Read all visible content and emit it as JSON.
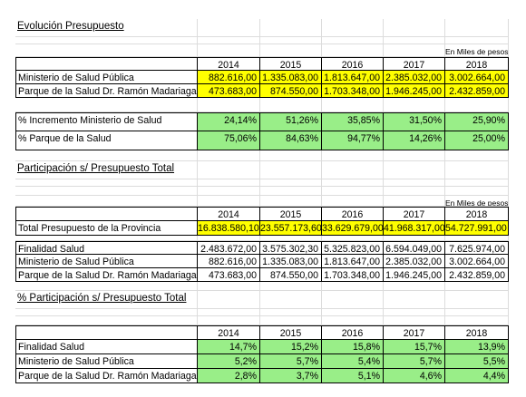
{
  "years": [
    "2014",
    "2015",
    "2016",
    "2017",
    "2018"
  ],
  "unit_label": "En Miles de pesos",
  "section1": {
    "title": "Evolución Presupuesto",
    "rows": [
      {
        "label": "Ministerio de Salud Pública",
        "values": [
          "882.616,00",
          "1.335.083,00",
          "1.813.647,00",
          "2.385.032,00",
          "3.002.664,00"
        ]
      },
      {
        "label": "Parque de la Salud Dr. Ramón Madariaga",
        "values": [
          "473.683,00",
          "874.550,00",
          "1.703.348,00",
          "1.946.245,00",
          "2.432.859,00"
        ]
      }
    ],
    "pct_rows": [
      {
        "label": "% Incremento Ministerio de Salud",
        "values": [
          "24,14%",
          "51,26%",
          "35,85%",
          "31,50%",
          "25,90%"
        ]
      },
      {
        "label": "% Parque de la Salud",
        "values": [
          "75,06%",
          "84,63%",
          "94,77%",
          "14,26%",
          "25,00%"
        ]
      }
    ]
  },
  "section2": {
    "title": "Participación s/ Presupuesto Total",
    "total_row": {
      "label": "Total Presupuesto de la Provincia",
      "values": [
        "16.838.580,10",
        "23.557.173,60",
        "33.629.679,00",
        "41.968.317,00",
        "54.727.991,00"
      ]
    },
    "rows": [
      {
        "label": "Finalidad Salud",
        "values": [
          "2.483.672,00",
          "3.575.302,30",
          "5.325.823,00",
          "6.594.049,00",
          "7.625.974,00"
        ]
      },
      {
        "label": "Ministerio de Salud Pública",
        "values": [
          "882.616,00",
          "1.335.083,00",
          "1.813.647,00",
          "2.385.032,00",
          "3.002.664,00"
        ]
      },
      {
        "label": "Parque de la Salud Dr. Ramón Madariaga",
        "values": [
          "473.683,00",
          "874.550,00",
          "1.703.348,00",
          "1.946.245,00",
          "2.432.859,00"
        ]
      }
    ]
  },
  "section3": {
    "title": "% Participación s/ Presupuesto Total",
    "rows": [
      {
        "label": "Finalidad Salud",
        "values": [
          "14,7%",
          "15,2%",
          "15,8%",
          "15,7%",
          "13,9%"
        ]
      },
      {
        "label": "Ministerio de Salud Pública",
        "values": [
          "5,2%",
          "5,7%",
          "5,4%",
          "5,7%",
          "5,5%"
        ]
      },
      {
        "label": "Parque de la Salud Dr. Ramón Madariaga",
        "values": [
          "2,8%",
          "3,7%",
          "5,1%",
          "4,6%",
          "4,4%"
        ]
      }
    ]
  }
}
